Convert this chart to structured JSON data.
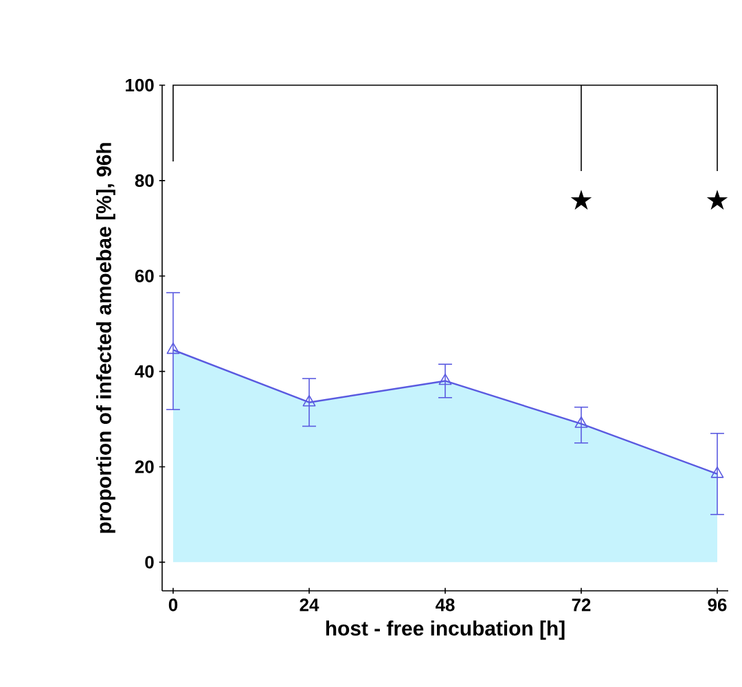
{
  "chart_data": {
    "type": "area",
    "xlabel": "host - free incubation [h]",
    "ylabel": "proportion of infected amoebae [%], 96h",
    "x": [
      0,
      24,
      48,
      72,
      96
    ],
    "series": [
      {
        "color": "#5a5ae0",
        "values": [
          44.5,
          33.5,
          38,
          29,
          18.5
        ],
        "errors": [
          [
            32,
            56.5
          ],
          [
            28.5,
            38.5
          ],
          [
            34.5,
            41.5
          ],
          [
            25,
            32.5
          ],
          [
            10,
            27
          ]
        ]
      }
    ],
    "xlim": [
      0,
      96
    ],
    "ylim": [
      -6,
      100
    ],
    "xticks": [
      0,
      24,
      48,
      72,
      96
    ],
    "yticks": [
      0,
      20,
      40,
      60,
      80,
      100
    ],
    "marker": "triangle",
    "grid": false,
    "annotations": [
      "★",
      "★"
    ]
  }
}
